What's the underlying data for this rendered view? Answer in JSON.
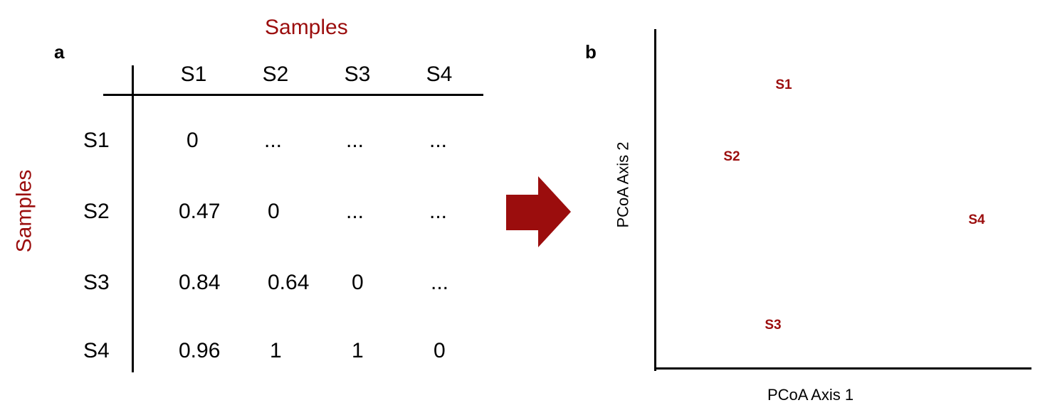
{
  "panel_a": {
    "label": "a",
    "col_title": "Samples",
    "row_title": "Samples",
    "columns": [
      "S1",
      "S2",
      "S3",
      "S4"
    ],
    "rows": [
      {
        "label": "S1",
        "cells": [
          "0",
          "...",
          "...",
          "..."
        ]
      },
      {
        "label": "S2",
        "cells": [
          "0.47",
          "0",
          "...",
          "..."
        ]
      },
      {
        "label": "S3",
        "cells": [
          "0.84",
          "0.64",
          "0",
          "..."
        ]
      },
      {
        "label": "S4",
        "cells": [
          "0.96",
          "1",
          "1",
          "0"
        ]
      }
    ]
  },
  "arrow": {
    "color": "#9b0d0d"
  },
  "panel_b": {
    "label": "b",
    "xlabel": "PCoA Axis 1",
    "ylabel": "PCoA Axis 2",
    "points": [
      {
        "label": "S1"
      },
      {
        "label": "S2"
      },
      {
        "label": "S3"
      },
      {
        "label": "S4"
      }
    ]
  },
  "colors": {
    "accent": "#9b0d0d",
    "text": "#000000"
  }
}
